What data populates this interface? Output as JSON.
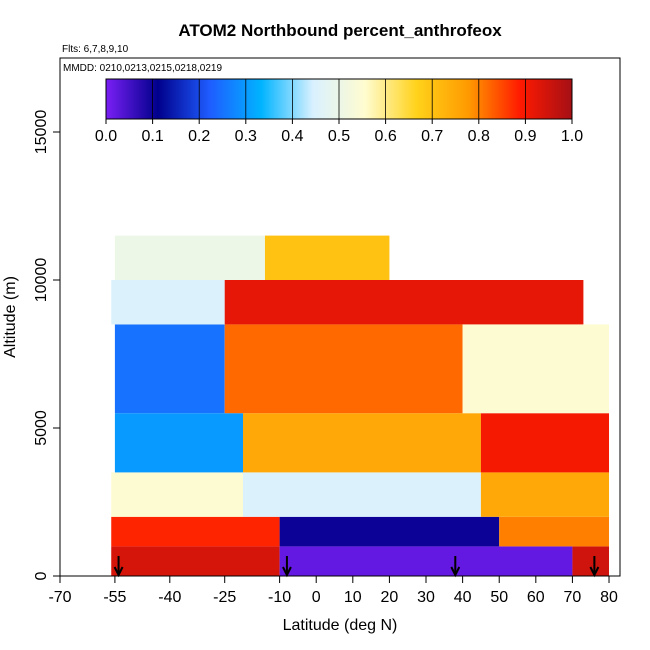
{
  "chart_data": {
    "type": "heatmap",
    "title": "ATOM2 Northbound percent_anthrofeox",
    "subtitle_flights": "Flts: 6,7,8,9,10",
    "subtitle_dates": "MMDD: 0210,0213,0215,0218,0219",
    "xlabel": "Latitude (deg N)",
    "ylabel": "Altitude (m)",
    "xlim": [
      -70,
      83
    ],
    "ylim": [
      0,
      17500
    ],
    "x_ticks": [
      -70,
      -55,
      -40,
      -25,
      -10,
      0,
      10,
      20,
      30,
      40,
      50,
      60,
      70,
      80
    ],
    "y_ticks": [
      0,
      5000,
      10000,
      15000
    ],
    "colorbar": {
      "range": [
        0,
        1
      ],
      "ticks": [
        "0.0",
        "0.1",
        "0.2",
        "0.3",
        "0.4",
        "0.5",
        "0.6",
        "0.7",
        "0.8",
        "0.9",
        "1.0"
      ],
      "colors": [
        "#7a1ff5",
        "#00008b",
        "#1f5cff",
        "#00b4ff",
        "#d9f1ff",
        "#fffcd0",
        "#ffd21a",
        "#ff9a00",
        "#ff1a00",
        "#a50f15"
      ]
    },
    "grid": false,
    "legend": "top",
    "flight_markers_lat": [
      -54,
      -8,
      38,
      76
    ],
    "cells": [
      {
        "lat0": -56,
        "lat1": -10,
        "alt0": 0,
        "alt1": 1000,
        "v": 0.94
      },
      {
        "lat0": -10,
        "lat1": 70,
        "alt0": 0,
        "alt1": 1000,
        "v": 0.02
      },
      {
        "lat0": 70,
        "lat1": 80,
        "alt0": 0,
        "alt1": 1000,
        "v": 0.95
      },
      {
        "lat0": -56,
        "lat1": -10,
        "alt0": 1000,
        "alt1": 2000,
        "v": 0.88
      },
      {
        "lat0": -10,
        "lat1": 50,
        "alt0": 1000,
        "alt1": 2000,
        "v": 0.1
      },
      {
        "lat0": 50,
        "lat1": 80,
        "alt0": 1000,
        "alt1": 2000,
        "v": 0.8
      },
      {
        "lat0": -56,
        "lat1": -20,
        "alt0": 2000,
        "alt1": 3500,
        "v": 0.55
      },
      {
        "lat0": -20,
        "lat1": 45,
        "alt0": 2000,
        "alt1": 3500,
        "v": 0.45
      },
      {
        "lat0": 45,
        "lat1": 80,
        "alt0": 2000,
        "alt1": 3500,
        "v": 0.75
      },
      {
        "lat0": -55,
        "lat1": -20,
        "alt0": 3500,
        "alt1": 5500,
        "v": 0.3
      },
      {
        "lat0": -20,
        "lat1": 45,
        "alt0": 3500,
        "alt1": 5500,
        "v": 0.75
      },
      {
        "lat0": 45,
        "lat1": 80,
        "alt0": 3500,
        "alt1": 5500,
        "v": 0.9
      },
      {
        "lat0": -55,
        "lat1": -25,
        "alt0": 5500,
        "alt1": 8500,
        "v": 0.25
      },
      {
        "lat0": -25,
        "lat1": 40,
        "alt0": 5500,
        "alt1": 8500,
        "v": 0.82
      },
      {
        "lat0": 40,
        "lat1": 80,
        "alt0": 5500,
        "alt1": 8500,
        "v": 0.55
      },
      {
        "lat0": -56,
        "lat1": -25,
        "alt0": 8500,
        "alt1": 10000,
        "v": 0.45
      },
      {
        "lat0": -25,
        "lat1": 73,
        "alt0": 8500,
        "alt1": 10000,
        "v": 0.92
      },
      {
        "lat0": -55,
        "lat1": -14,
        "alt0": 10000,
        "alt1": 11500,
        "v": 0.5
      },
      {
        "lat0": -14,
        "lat1": 20,
        "alt0": 10000,
        "alt1": 11500,
        "v": 0.7
      }
    ]
  }
}
